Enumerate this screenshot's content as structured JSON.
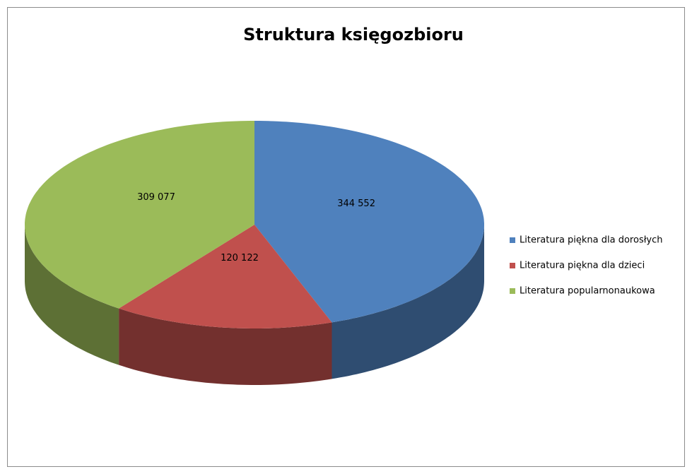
{
  "chart_data": {
    "type": "pie",
    "title": "Struktura księgozbioru",
    "categories": [
      "Literatura piękna dla dorosłych",
      "Literatura piękna dla dzieci",
      "Literatura popularnonaukowa"
    ],
    "values": [
      344552,
      120122,
      309077
    ],
    "value_labels": [
      "344 552",
      "120 122",
      "309 077"
    ],
    "colors": [
      "#4f81bd",
      "#c0504d",
      "#9bbb59"
    ],
    "legend": "right"
  }
}
